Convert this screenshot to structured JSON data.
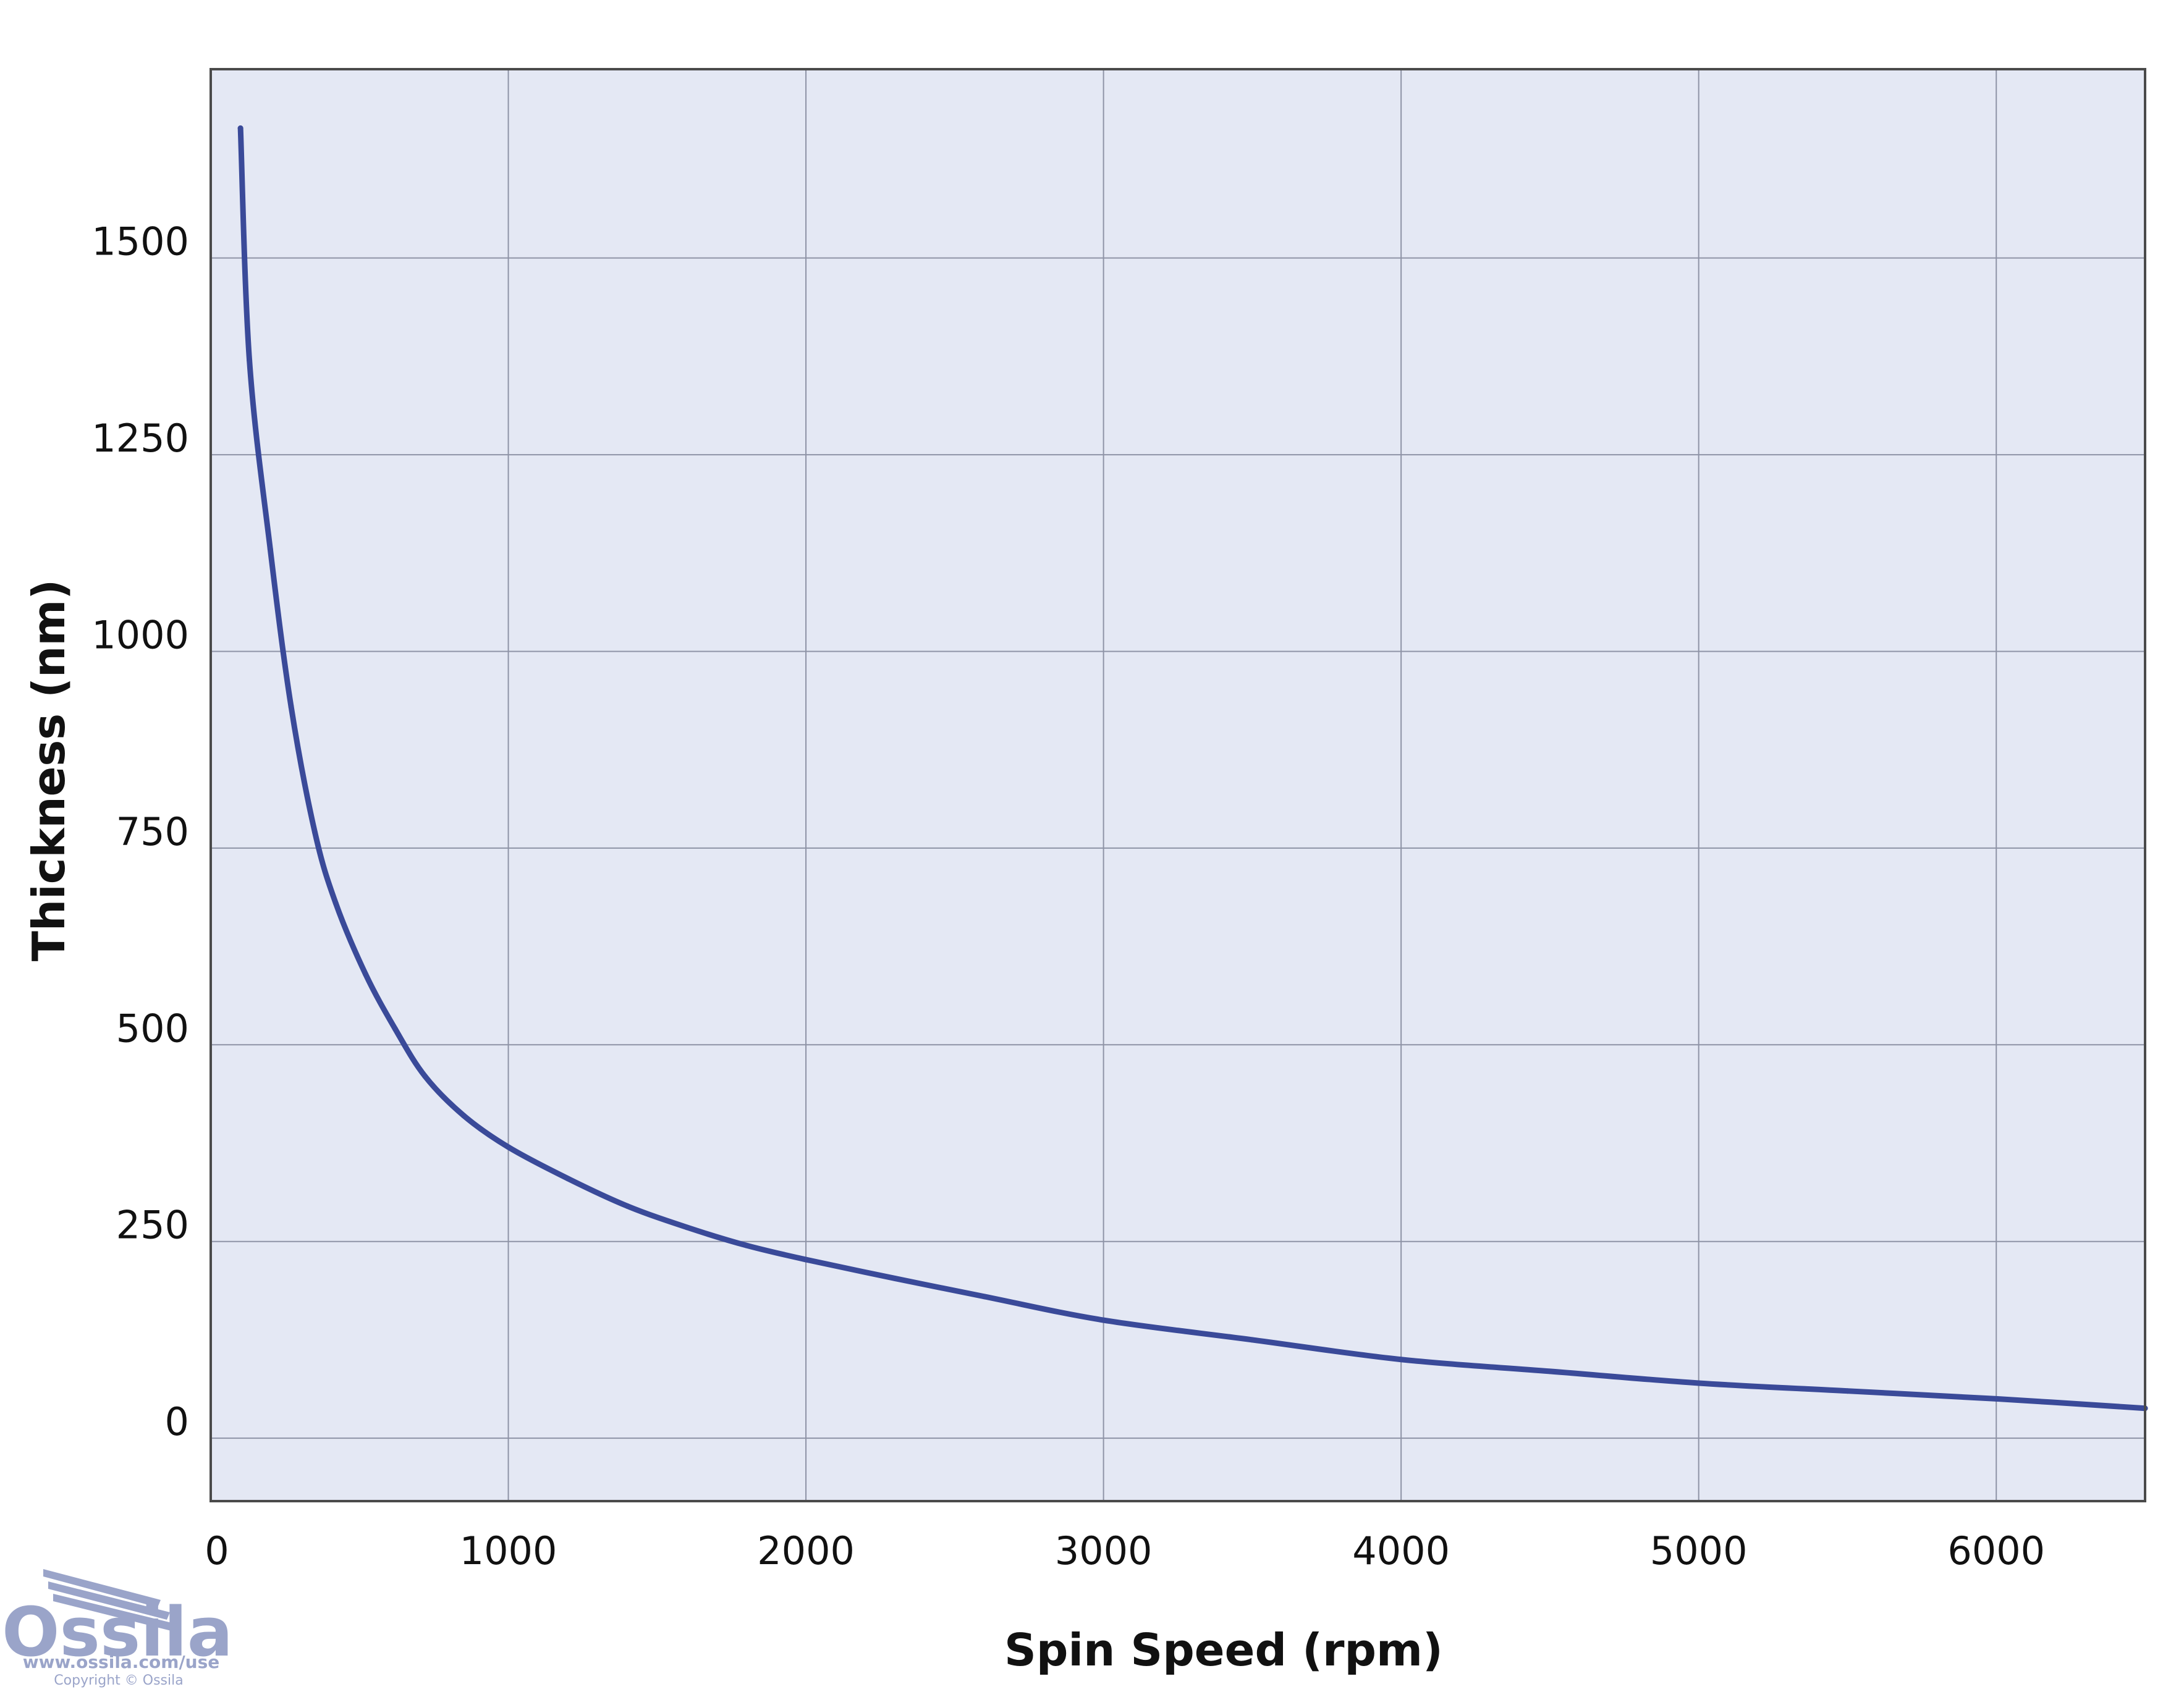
{
  "chart_data": {
    "type": "line",
    "xlabel": "Spin Speed (rpm)",
    "ylabel": "Thickness (nm)",
    "xlim": [
      0,
      6500
    ],
    "ylim": [
      -80,
      1740
    ],
    "x_ticks": [
      0,
      1000,
      2000,
      3000,
      4000,
      5000,
      6000
    ],
    "y_ticks": [
      0,
      250,
      500,
      750,
      1000,
      1250,
      1500
    ],
    "grid": true,
    "legend": "none",
    "series": [
      {
        "color": "#3a4a99",
        "x": [
          100,
          130,
          200,
          270,
          350,
          420,
          520,
          620,
          720,
          850,
          1000,
          1200,
          1400,
          1600,
          1800,
          2000,
          2300,
          2600,
          3000,
          3500,
          4000,
          4500,
          5000,
          5500,
          6000,
          6500
        ],
        "y": [
          1665,
          1370,
          1130,
          930,
          770,
          680,
          590,
          520,
          460,
          410,
          370,
          330,
          295,
          268,
          245,
          227,
          203,
          180,
          150,
          125,
          100,
          85,
          70,
          60,
          50,
          38
        ]
      }
    ]
  },
  "colors": {
    "plot_background": "#e4e8f4",
    "grid": "#8e93a6",
    "frame": "#4a4a4a",
    "line": "#3a4a99",
    "logo": "#9aa4c9"
  },
  "logo": {
    "name": "Ossila",
    "url": "www.ossila.com/use",
    "copyright": "Copyright © Ossila"
  }
}
